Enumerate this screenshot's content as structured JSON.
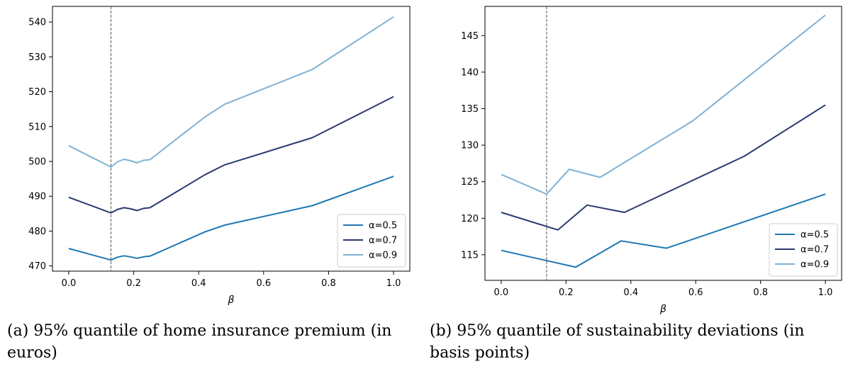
{
  "chart_data": [
    {
      "type": "line",
      "xlabel": "β",
      "ylabel": "",
      "xlim": [
        -0.05,
        1.05
      ],
      "ylim": [
        468.5,
        544.5
      ],
      "xticks": [
        0.0,
        0.2,
        0.4,
        0.6,
        0.8,
        1.0
      ],
      "xtick_labels": [
        "0.0",
        "0.2",
        "0.4",
        "0.6",
        "0.8",
        "1.0"
      ],
      "yticks": [
        470,
        480,
        490,
        500,
        510,
        520,
        530,
        540
      ],
      "ytick_labels": [
        "470",
        "480",
        "490",
        "500",
        "510",
        "520",
        "530",
        "540"
      ],
      "vline_x": 0.13,
      "grid": false,
      "legend_position": "lower-right",
      "series": [
        {
          "name": "α=0.5",
          "color": "#1f77b4",
          "x": [
            0.0,
            0.13,
            0.15,
            0.17,
            0.19,
            0.21,
            0.23,
            0.25,
            0.42,
            0.48,
            0.75,
            1.0
          ],
          "y": [
            475.0,
            471.7,
            472.5,
            472.9,
            472.6,
            472.2,
            472.6,
            472.8,
            479.8,
            481.7,
            487.3,
            495.7
          ]
        },
        {
          "name": "α=0.7",
          "color": "#2b3a70",
          "x": [
            0.0,
            0.13,
            0.15,
            0.17,
            0.19,
            0.21,
            0.23,
            0.25,
            0.42,
            0.48,
            0.75,
            1.0
          ],
          "y": [
            489.7,
            485.2,
            486.2,
            486.7,
            486.4,
            485.9,
            486.5,
            486.7,
            496.2,
            499.0,
            506.8,
            518.6
          ]
        },
        {
          "name": "α=0.9",
          "color": "#7fb2d5",
          "x": [
            0.0,
            0.13,
            0.15,
            0.17,
            0.19,
            0.21,
            0.23,
            0.25,
            0.42,
            0.48,
            0.75,
            1.0
          ],
          "y": [
            504.5,
            498.4,
            499.9,
            500.6,
            500.2,
            499.6,
            500.3,
            500.5,
            512.8,
            516.4,
            526.4,
            541.5
          ]
        }
      ],
      "caption": {
        "line1": "(a) 95% quantile of home insurance premium (in",
        "line2": "euros)"
      }
    },
    {
      "type": "line",
      "xlabel": "β",
      "ylabel": "",
      "xlim": [
        -0.05,
        1.05
      ],
      "ylim": [
        111.5,
        149.0
      ],
      "xticks": [
        0.0,
        0.2,
        0.4,
        0.6,
        0.8,
        1.0
      ],
      "xtick_labels": [
        "0.0",
        "0.2",
        "0.4",
        "0.6",
        "0.8",
        "1.0"
      ],
      "yticks": [
        115,
        120,
        125,
        130,
        135,
        140,
        145
      ],
      "ytick_labels": [
        "115",
        "120",
        "125",
        "130",
        "135",
        "140",
        "145"
      ],
      "vline_x": 0.14,
      "grid": false,
      "legend_position": "lower-right",
      "series": [
        {
          "name": "α=0.5",
          "color": "#1f77b4",
          "x": [
            0.0,
            0.23,
            0.37,
            0.51,
            1.0
          ],
          "y": [
            115.6,
            113.3,
            116.9,
            115.9,
            123.3
          ]
        },
        {
          "name": "α=0.7",
          "color": "#2b3a70",
          "x": [
            0.0,
            0.175,
            0.265,
            0.38,
            0.75,
            1.0
          ],
          "y": [
            120.8,
            118.4,
            121.8,
            120.8,
            128.5,
            135.5
          ]
        },
        {
          "name": "α=0.9",
          "color": "#7fb2d5",
          "x": [
            0.0,
            0.14,
            0.21,
            0.305,
            0.59,
            1.0
          ],
          "y": [
            126.0,
            123.3,
            126.7,
            125.6,
            133.3,
            147.8
          ]
        }
      ],
      "caption": {
        "line1": "(b) 95% quantile of sustainability deviations (in",
        "line2": "basis points)"
      }
    }
  ]
}
